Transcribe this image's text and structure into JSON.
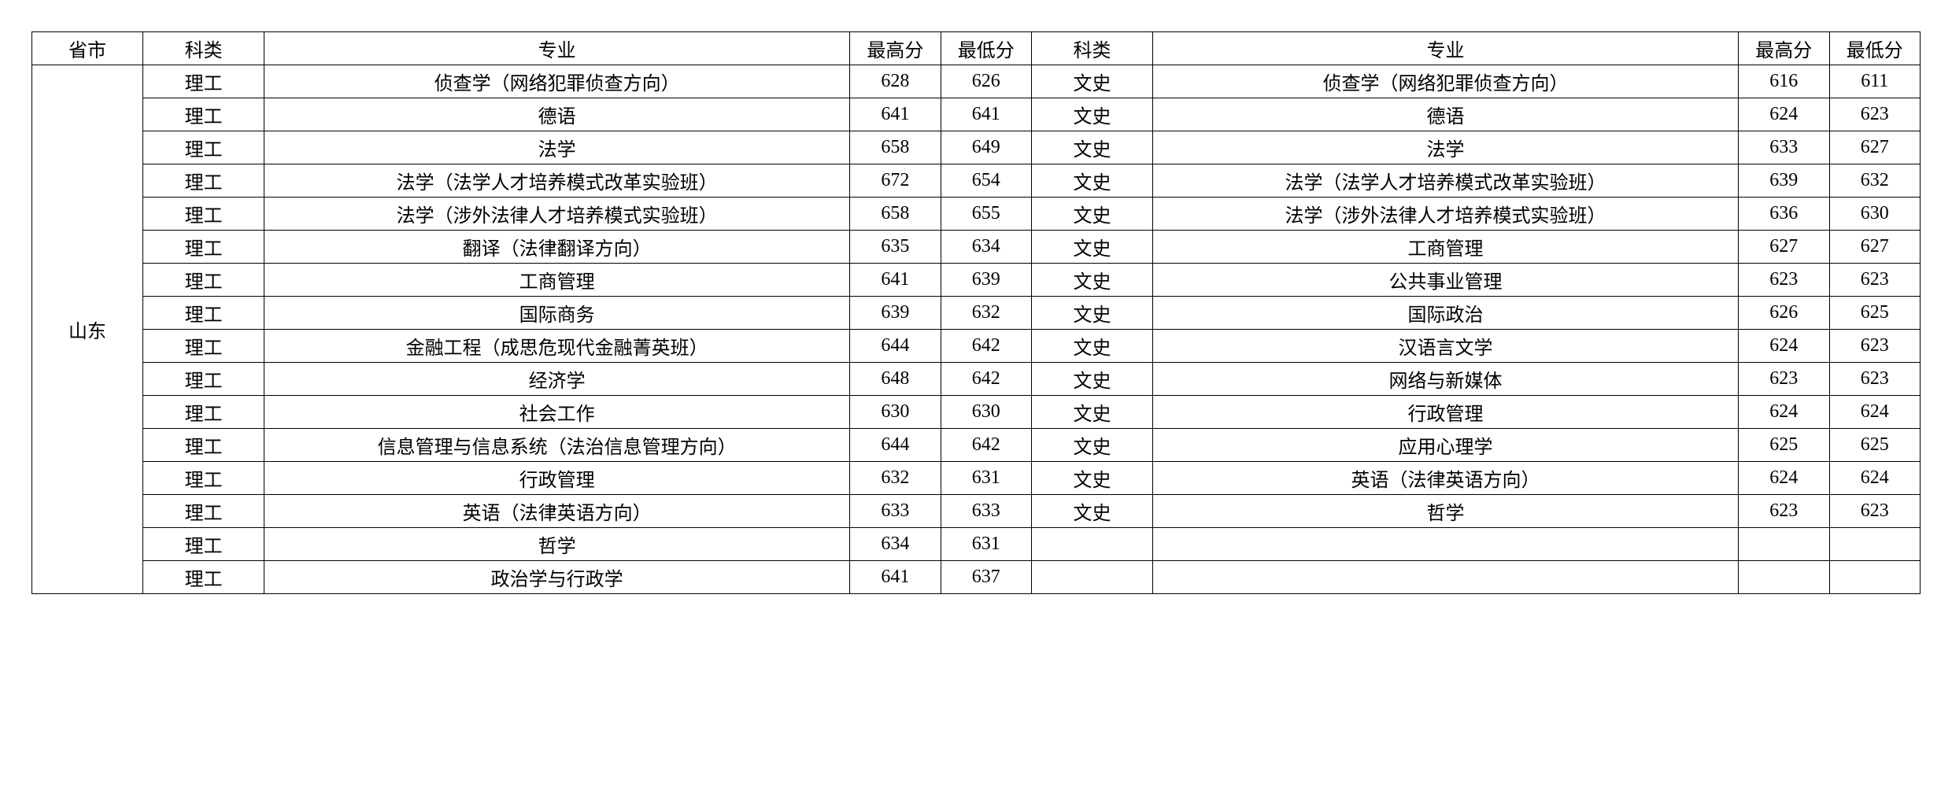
{
  "headers": {
    "province": "省市",
    "track": "科类",
    "major": "专业",
    "high": "最高分",
    "low": "最低分"
  },
  "province": "山东",
  "rows": [
    {
      "lt": "理工",
      "lm": "侦查学（网络犯罪侦查方向）",
      "lh": "628",
      "ll": "626",
      "rt": "文史",
      "rm": "侦查学（网络犯罪侦查方向）",
      "rh": "616",
      "rl": "611"
    },
    {
      "lt": "理工",
      "lm": "德语",
      "lh": "641",
      "ll": "641",
      "rt": "文史",
      "rm": "德语",
      "rh": "624",
      "rl": "623"
    },
    {
      "lt": "理工",
      "lm": "法学",
      "lh": "658",
      "ll": "649",
      "rt": "文史",
      "rm": "法学",
      "rh": "633",
      "rl": "627"
    },
    {
      "lt": "理工",
      "lm": "法学（法学人才培养模式改革实验班）",
      "lh": "672",
      "ll": "654",
      "rt": "文史",
      "rm": "法学（法学人才培养模式改革实验班）",
      "rh": "639",
      "rl": "632"
    },
    {
      "lt": "理工",
      "lm": "法学（涉外法律人才培养模式实验班）",
      "lh": "658",
      "ll": "655",
      "rt": "文史",
      "rm": "法学（涉外法律人才培养模式实验班）",
      "rh": "636",
      "rl": "630"
    },
    {
      "lt": "理工",
      "lm": "翻译（法律翻译方向）",
      "lh": "635",
      "ll": "634",
      "rt": "文史",
      "rm": "工商管理",
      "rh": "627",
      "rl": "627"
    },
    {
      "lt": "理工",
      "lm": "工商管理",
      "lh": "641",
      "ll": "639",
      "rt": "文史",
      "rm": "公共事业管理",
      "rh": "623",
      "rl": "623"
    },
    {
      "lt": "理工",
      "lm": "国际商务",
      "lh": "639",
      "ll": "632",
      "rt": "文史",
      "rm": "国际政治",
      "rh": "626",
      "rl": "625"
    },
    {
      "lt": "理工",
      "lm": "金融工程（成思危现代金融菁英班）",
      "lh": "644",
      "ll": "642",
      "rt": "文史",
      "rm": "汉语言文学",
      "rh": "624",
      "rl": "623"
    },
    {
      "lt": "理工",
      "lm": "经济学",
      "lh": "648",
      "ll": "642",
      "rt": "文史",
      "rm": "网络与新媒体",
      "rh": "623",
      "rl": "623"
    },
    {
      "lt": "理工",
      "lm": "社会工作",
      "lh": "630",
      "ll": "630",
      "rt": "文史",
      "rm": "行政管理",
      "rh": "624",
      "rl": "624"
    },
    {
      "lt": "理工",
      "lm": "信息管理与信息系统（法治信息管理方向）",
      "lh": "644",
      "ll": "642",
      "rt": "文史",
      "rm": "应用心理学",
      "rh": "625",
      "rl": "625"
    },
    {
      "lt": "理工",
      "lm": "行政管理",
      "lh": "632",
      "ll": "631",
      "rt": "文史",
      "rm": "英语（法律英语方向）",
      "rh": "624",
      "rl": "624"
    },
    {
      "lt": "理工",
      "lm": "英语（法律英语方向）",
      "lh": "633",
      "ll": "633",
      "rt": "文史",
      "rm": "哲学",
      "rh": "623",
      "rl": "623"
    },
    {
      "lt": "理工",
      "lm": "哲学",
      "lh": "634",
      "ll": "631",
      "rt": "",
      "rm": "",
      "rh": "",
      "rl": ""
    },
    {
      "lt": "理工",
      "lm": "政治学与行政学",
      "lh": "641",
      "ll": "637",
      "rt": "",
      "rm": "",
      "rh": "",
      "rl": ""
    }
  ]
}
